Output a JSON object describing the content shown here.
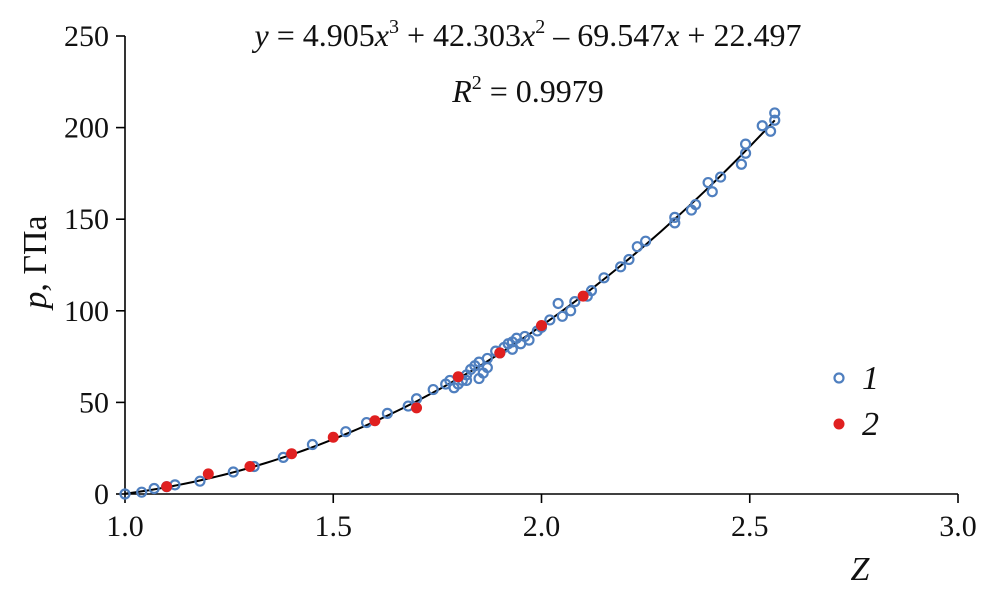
{
  "chart_data": {
    "type": "scatter",
    "title": "",
    "xlabel": "Z",
    "ylabel_italic": "p",
    "ylabel_rest": ", ГПа",
    "xlim": [
      1.0,
      3.0
    ],
    "ylim": [
      0,
      250
    ],
    "x_ticks": [
      1.0,
      1.5,
      2.0,
      2.5,
      3.0
    ],
    "x_tick_labels": [
      "1.0",
      "1.5",
      "2.0",
      "2.5",
      "3.0"
    ],
    "y_ticks": [
      0,
      50,
      100,
      150,
      200,
      250
    ],
    "y_tick_labels": [
      "0",
      "50",
      "100",
      "150",
      "200",
      "250"
    ],
    "grid": false,
    "legend_position": "right",
    "annotation": {
      "equation_prefix": "y",
      "equation_middle": " = 4.905",
      "equation_var1": "x",
      "equation_exp1": "3",
      "equation_part2": " + 42.303",
      "equation_var2": "x",
      "equation_exp2": "2",
      "equation_part3": " – 69.547",
      "equation_var3": "x",
      "equation_part4": " + 22.497",
      "r2_var": "R",
      "r2_exp": "2",
      "r2_value": " = 0.9979"
    },
    "fit": {
      "type": "polynomial",
      "coefficients": [
        4.905,
        42.303,
        -69.547,
        22.497
      ],
      "x_range": [
        1.0,
        2.56
      ],
      "color": "#000000"
    },
    "series": [
      {
        "name": "1",
        "marker": "open-circle",
        "color": "#4f7fbf",
        "points": [
          [
            1.0,
            0
          ],
          [
            1.04,
            1
          ],
          [
            1.07,
            3
          ],
          [
            1.1,
            4
          ],
          [
            1.12,
            5
          ],
          [
            1.18,
            7
          ],
          [
            1.26,
            12
          ],
          [
            1.31,
            15
          ],
          [
            1.38,
            20
          ],
          [
            1.45,
            27
          ],
          [
            1.53,
            34
          ],
          [
            1.58,
            39
          ],
          [
            1.63,
            44
          ],
          [
            1.68,
            48
          ],
          [
            1.7,
            52
          ],
          [
            1.74,
            57
          ],
          [
            1.77,
            60
          ],
          [
            1.78,
            62
          ],
          [
            1.79,
            58
          ],
          [
            1.8,
            60
          ],
          [
            1.81,
            62
          ],
          [
            1.82,
            65
          ],
          [
            1.82,
            62
          ],
          [
            1.83,
            68
          ],
          [
            1.84,
            70
          ],
          [
            1.85,
            63
          ],
          [
            1.85,
            72
          ],
          [
            1.86,
            66
          ],
          [
            1.87,
            74
          ],
          [
            1.87,
            69
          ],
          [
            1.89,
            78
          ],
          [
            1.9,
            77
          ],
          [
            1.91,
            80
          ],
          [
            1.92,
            82
          ],
          [
            1.93,
            83
          ],
          [
            1.93,
            79
          ],
          [
            1.94,
            85
          ],
          [
            1.95,
            82
          ],
          [
            1.96,
            86
          ],
          [
            1.97,
            84
          ],
          [
            1.99,
            89
          ],
          [
            2.0,
            91
          ],
          [
            2.02,
            95
          ],
          [
            2.04,
            104
          ],
          [
            2.05,
            97
          ],
          [
            2.07,
            100
          ],
          [
            2.08,
            105
          ],
          [
            2.11,
            108
          ],
          [
            2.12,
            111
          ],
          [
            2.15,
            118
          ],
          [
            2.19,
            124
          ],
          [
            2.21,
            128
          ],
          [
            2.23,
            135
          ],
          [
            2.25,
            138
          ],
          [
            2.32,
            151
          ],
          [
            2.32,
            148
          ],
          [
            2.36,
            155
          ],
          [
            2.37,
            158
          ],
          [
            2.4,
            170
          ],
          [
            2.41,
            165
          ],
          [
            2.43,
            173
          ],
          [
            2.48,
            180
          ],
          [
            2.49,
            186
          ],
          [
            2.49,
            191
          ],
          [
            2.53,
            201
          ],
          [
            2.55,
            198
          ],
          [
            2.56,
            204
          ],
          [
            2.56,
            208
          ]
        ]
      },
      {
        "name": "2",
        "marker": "filled-circle",
        "color": "#e02020",
        "points": [
          [
            1.1,
            4
          ],
          [
            1.2,
            11
          ],
          [
            1.3,
            15
          ],
          [
            1.4,
            22
          ],
          [
            1.5,
            31
          ],
          [
            1.6,
            40
          ],
          [
            1.7,
            47
          ],
          [
            1.8,
            64
          ],
          [
            1.9,
            77
          ],
          [
            2.0,
            92
          ],
          [
            2.1,
            108
          ]
        ]
      }
    ]
  }
}
